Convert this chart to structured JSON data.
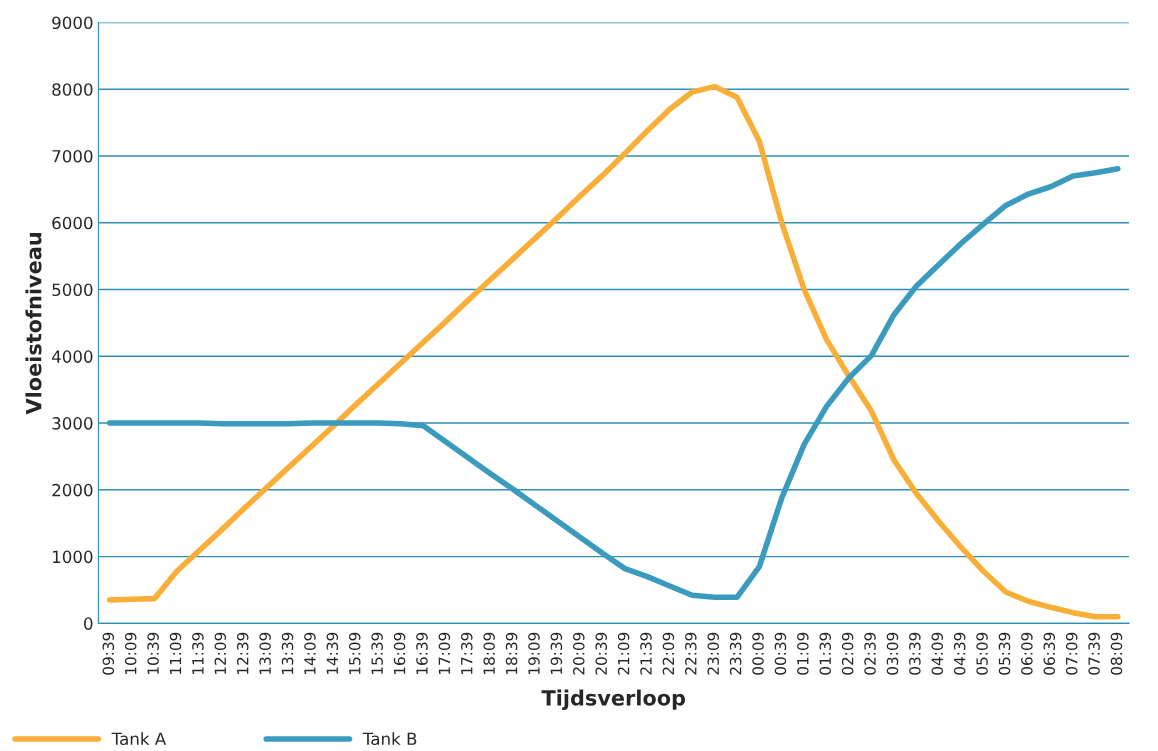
{
  "chart_data": {
    "type": "line",
    "xlabel": "Tijdsverloop",
    "ylabel": "Vloeistofniveau",
    "categories": [
      "09:39",
      "10:09",
      "10:39",
      "11:09",
      "11:39",
      "12:09",
      "12:39",
      "13:09",
      "13:39",
      "14:09",
      "14:39",
      "15:09",
      "15:39",
      "16:09",
      "16:39",
      "17:09",
      "17:39",
      "18:09",
      "18:39",
      "19:09",
      "19:39",
      "20:09",
      "20:39",
      "21:09",
      "21:39",
      "22:09",
      "22:39",
      "23:09",
      "23:39",
      "00:09",
      "00:39",
      "01:09",
      "01:39",
      "02:09",
      "02:39",
      "03:09",
      "03:39",
      "04:09",
      "04:39",
      "05:09",
      "05:39",
      "06:09",
      "06:39",
      "07:09",
      "07:39",
      "08:09"
    ],
    "series": [
      {
        "name": "Tank A",
        "color": "#f9ae37",
        "values": [
          350,
          360,
          370,
          780,
          1090,
          1400,
          1720,
          2030,
          2340,
          2650,
          2960,
          3280,
          3590,
          3900,
          4210,
          4520,
          4840,
          5150,
          5460,
          5770,
          6080,
          6400,
          6710,
          7040,
          7380,
          7700,
          7960,
          8040,
          7880,
          7220,
          6000,
          5000,
          4250,
          3700,
          3180,
          2450,
          1950,
          1530,
          1140,
          780,
          470,
          330,
          240,
          160,
          100,
          100
        ]
      },
      {
        "name": "Tank B",
        "color": "#3a9bbf",
        "values": [
          3000,
          3000,
          3000,
          3000,
          3000,
          2990,
          2990,
          2990,
          2990,
          3000,
          3000,
          3000,
          3000,
          2990,
          2960,
          2720,
          2480,
          2240,
          2010,
          1770,
          1530,
          1290,
          1050,
          820,
          700,
          560,
          420,
          390,
          390,
          850,
          1880,
          2680,
          3250,
          3680,
          4010,
          4620,
          5050,
          5370,
          5690,
          5980,
          6260,
          6430,
          6540,
          6700,
          6750,
          6810
        ]
      }
    ],
    "ylim": [
      0,
      9000
    ],
    "yticks": [
      0,
      1000,
      2000,
      3000,
      4000,
      5000,
      6000,
      7000,
      8000,
      9000
    ],
    "grid": "y",
    "legend": "bottom left",
    "line_style": "solid",
    "marker": "none"
  }
}
